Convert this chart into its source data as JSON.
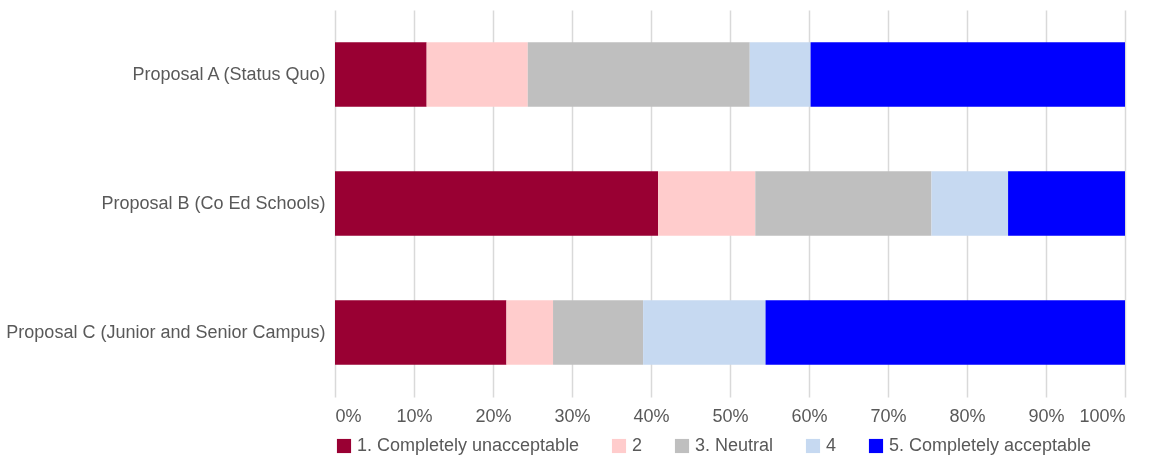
{
  "chart_data": {
    "type": "bar",
    "orientation": "horizontal",
    "stacked": true,
    "categories": [
      "Proposal A (Status Quo)",
      "Proposal B (Co Ed Schools)",
      "Proposal C (Junior and Senior Campus)"
    ],
    "series": [
      {
        "name": "1. Completely unacceptable",
        "color": "#990033",
        "values": [
          11.6,
          40.9,
          21.7
        ]
      },
      {
        "name": "2",
        "color": "#ffcccc",
        "values": [
          12.8,
          12.3,
          5.9
        ]
      },
      {
        "name": "3. Neutral",
        "color": "#bfbfbf",
        "values": [
          28.1,
          22.3,
          11.4
        ]
      },
      {
        "name": "4",
        "color": "#c6d9f1",
        "values": [
          7.7,
          9.7,
          15.5
        ]
      },
      {
        "name": "5. Completely acceptable",
        "color": "#0000ff",
        "values": [
          39.8,
          14.8,
          45.5
        ]
      }
    ],
    "xlim": [
      0,
      100
    ],
    "xticks": [
      {
        "value": 0,
        "label": "0%"
      },
      {
        "value": 10,
        "label": "10%"
      },
      {
        "value": 20,
        "label": "20%"
      },
      {
        "value": 30,
        "label": "30%"
      },
      {
        "value": 40,
        "label": "40%"
      },
      {
        "value": 50,
        "label": "50%"
      },
      {
        "value": 60,
        "label": "60%"
      },
      {
        "value": 70,
        "label": "70%"
      },
      {
        "value": 80,
        "label": "80%"
      },
      {
        "value": 90,
        "label": "90%"
      },
      {
        "value": 100,
        "label": "100%"
      }
    ],
    "grid": "x",
    "legend": "bottom"
  }
}
